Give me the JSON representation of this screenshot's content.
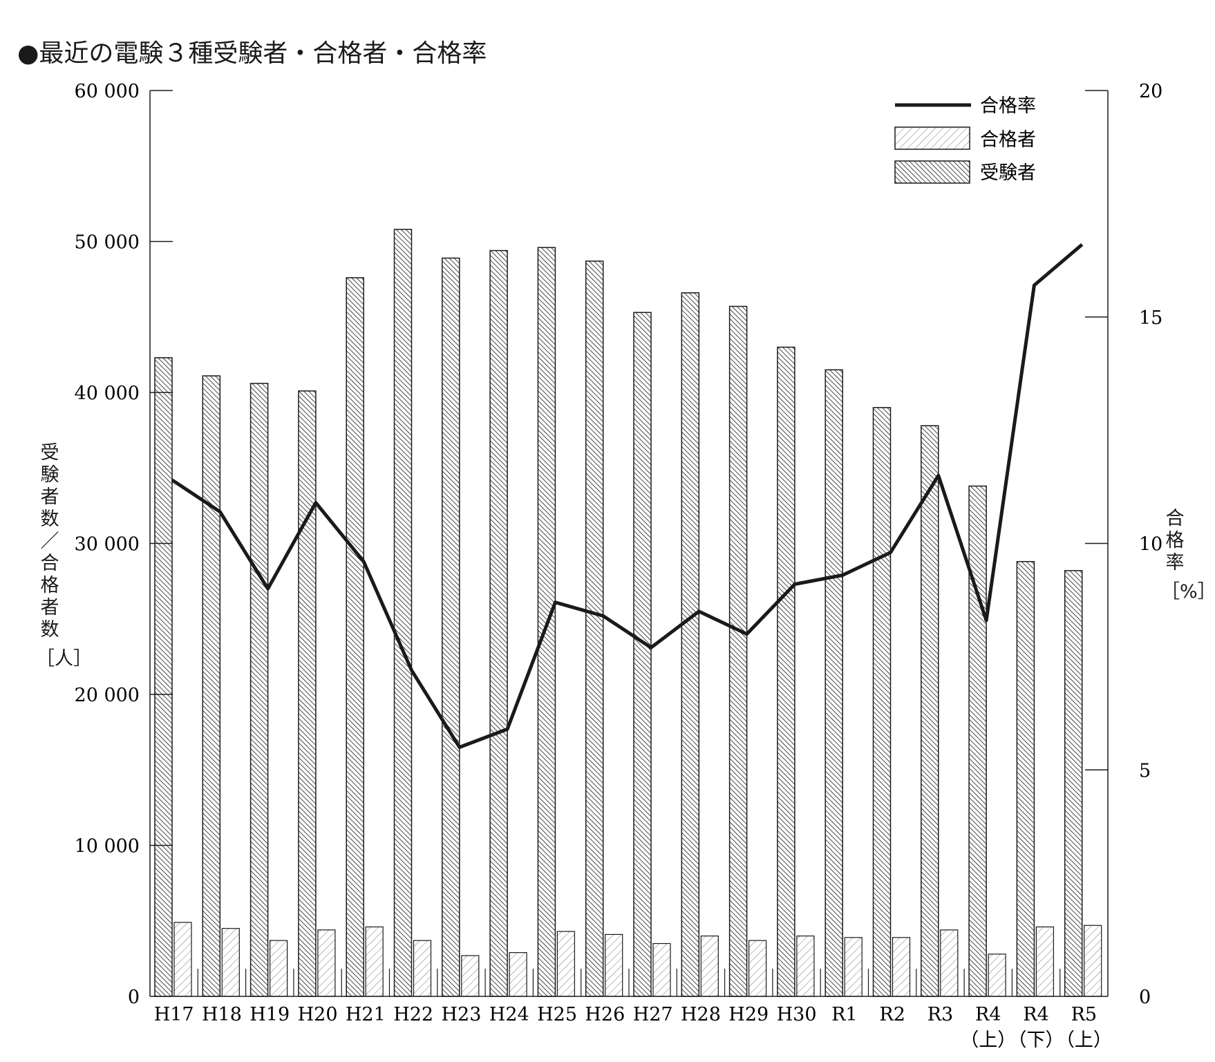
{
  "title": "●最近の電験３種受験者・合格者・合格率",
  "left_axis_label_chars": [
    "受",
    "験",
    "者",
    "数",
    "／",
    "合",
    "格",
    "者",
    "数"
  ],
  "left_axis_unit": "［人］",
  "right_axis_label_chars": [
    "合",
    "格",
    "率"
  ],
  "right_axis_unit": "［%］",
  "legend": {
    "rate": "合格率",
    "passers": "合格者",
    "examinees": "受験者"
  },
  "colors": {
    "line": "#1a1a1a",
    "bar_stroke": "#1a1a1a"
  },
  "chart_data": {
    "type": "bar",
    "categories": [
      "H17",
      "H18",
      "H19",
      "H20",
      "H21",
      "H22",
      "H23",
      "H24",
      "H25",
      "H26",
      "H27",
      "H28",
      "H29",
      "H30",
      "R1",
      "R2",
      "R3",
      "R4",
      "R4",
      "R5"
    ],
    "category_sublabels": [
      "",
      "",
      "",
      "",
      "",
      "",
      "",
      "",
      "",
      "",
      "",
      "",
      "",
      "",
      "",
      "",
      "",
      "（上）",
      "（下）",
      "（上）"
    ],
    "series": [
      {
        "name": "受験者",
        "axis": "left",
        "type": "bar",
        "pattern": "dense-hatch",
        "values": [
          42300,
          41100,
          40600,
          40100,
          47600,
          50800,
          48900,
          49400,
          49600,
          48700,
          45300,
          46600,
          45700,
          43000,
          41500,
          39000,
          37800,
          33800,
          28800,
          28200
        ]
      },
      {
        "name": "合格者",
        "axis": "left",
        "type": "bar",
        "pattern": "light-hatch",
        "values": [
          4900,
          4500,
          3700,
          4400,
          4600,
          3700,
          2700,
          2900,
          4300,
          4100,
          3500,
          4000,
          3700,
          4000,
          3900,
          3900,
          4400,
          2800,
          4600,
          4700
        ]
      },
      {
        "name": "合格率",
        "axis": "right",
        "type": "line",
        "values": [
          11.4,
          10.7,
          9.0,
          10.9,
          9.6,
          7.2,
          5.5,
          5.9,
          8.7,
          8.4,
          7.7,
          8.5,
          8.0,
          9.1,
          9.3,
          9.8,
          11.5,
          8.3,
          15.7,
          16.6
        ]
      }
    ],
    "left_ticks": [
      "0",
      "10 000",
      "20 000",
      "30 000",
      "40 000",
      "50 000",
      "60 000"
    ],
    "right_ticks": [
      "0",
      "5",
      "10",
      "15",
      "20"
    ],
    "ylim_left": [
      0,
      60000
    ],
    "ylim_right": [
      0,
      20
    ],
    "grid": false,
    "legend_position": "top-right"
  }
}
